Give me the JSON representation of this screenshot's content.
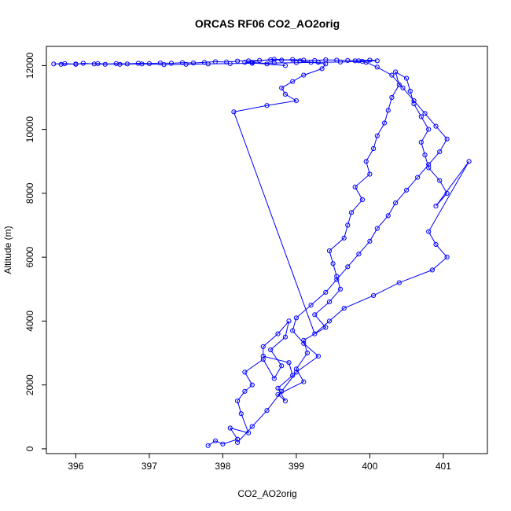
{
  "chart_data": {
    "type": "line",
    "title": "ORCAS RF06 CO2_AO2orig",
    "xlabel": "CO2_AO2orig",
    "ylabel": "Altitude (m)",
    "xlim": [
      395.6,
      401.6
    ],
    "ylim": [
      -150,
      12600
    ],
    "x_ticks": [
      396,
      397,
      398,
      399,
      400,
      401
    ],
    "y_ticks": [
      0,
      2000,
      4000,
      6000,
      8000,
      10000,
      12000
    ],
    "grid": false,
    "legend": "none",
    "line_color": "#0000ff",
    "marker": "open-circle",
    "series": [
      {
        "x": [
          397.8,
          397.9,
          398.0,
          398.2,
          398.1,
          398.35,
          398.25,
          398.2,
          398.3,
          398.4,
          398.3,
          398.55,
          398.7,
          398.8,
          398.65,
          398.85,
          398.9,
          398.75,
          398.55,
          398.55,
          398.9,
          398.95,
          398.75,
          398.85,
          398.75,
          399.1,
          399.0,
          399.15,
          399.1,
          399.4,
          399.25,
          399.45,
          399.6,
          399.55,
          399.5,
          399.45,
          399.65,
          399.7,
          399.75,
          399.9,
          399.8,
          400.0,
          399.95,
          400.05,
          400.1,
          400.2,
          400.25,
          400.3,
          400.4,
          400.35,
          400.5,
          400.55,
          400.6,
          400.7,
          400.8,
          400.7,
          400.75,
          400.8,
          400.95,
          401.05,
          400.9,
          401.35,
          400.8,
          400.9,
          401.05,
          400.85,
          400.4,
          400.05,
          399.65,
          399.45,
          399.25,
          398.15,
          398.6,
          399.0,
          398.85,
          398.8,
          398.95,
          399.1,
          399.35,
          399.4,
          399.2,
          399.05,
          398.7,
          398.3,
          398.85,
          398.6,
          398.4
        ],
        "y": [
          100,
          250,
          150,
          300,
          650,
          500,
          1100,
          1500,
          1800,
          2000,
          2400,
          2800,
          2200,
          2600,
          3100,
          3500,
          4000,
          3600,
          3200,
          2900,
          2700,
          2300,
          1900,
          1500,
          1700,
          2100,
          2500,
          3000,
          3400,
          3800,
          4200,
          4600,
          5000,
          5400,
          5800,
          6200,
          6600,
          7000,
          7400,
          7800,
          8200,
          8600,
          9000,
          9400,
          9800,
          10200,
          10600,
          11000,
          11400,
          11800,
          11600,
          11200,
          10800,
          10400,
          10000,
          9600,
          9200,
          8800,
          8400,
          8000,
          7600,
          9000,
          6800,
          6400,
          6000,
          5600,
          5200,
          4800,
          4400,
          4000,
          3600,
          10550,
          10750,
          10900,
          11100,
          11300,
          11500,
          11700,
          11900,
          12050,
          12100,
          12150,
          12200,
          12100,
          12000,
          12050,
          12100
        ]
      },
      {
        "x": [
          398.2,
          398.4,
          398.6,
          398.8,
          399.0,
          399.3,
          399.1,
          398.95,
          399.0,
          399.2,
          399.4,
          399.55,
          399.7,
          399.85,
          400.0,
          400.1,
          400.25,
          400.35,
          400.5,
          400.65,
          400.8,
          400.95,
          401.05,
          400.9,
          400.75,
          400.6,
          400.45,
          400.3,
          400.1,
          399.95,
          399.8
        ],
        "y": [
          200,
          700,
          1200,
          1800,
          2400,
          2900,
          3300,
          3700,
          4100,
          4500,
          4900,
          5300,
          5700,
          6100,
          6500,
          6900,
          7300,
          7700,
          8100,
          8500,
          8900,
          9300,
          9700,
          10100,
          10500,
          10900,
          11300,
          11700,
          11950,
          12100,
          12150
        ]
      }
    ],
    "cloud_series": {
      "x": [
        395.7,
        395.85,
        396.0,
        396.1,
        396.25,
        396.4,
        396.55,
        396.7,
        396.85,
        397.0,
        397.15,
        397.3,
        397.45,
        397.6,
        397.75,
        397.9,
        398.05,
        398.2,
        398.35,
        398.5,
        398.65,
        398.8,
        398.95,
        399.1,
        399.25,
        399.4,
        399.55,
        399.7,
        399.85,
        400.0,
        400.1,
        399.9,
        399.6,
        399.3,
        399.0,
        398.7,
        398.4,
        398.1,
        397.8,
        397.5,
        397.2,
        396.9,
        396.6,
        396.3,
        396.0,
        395.8
      ],
      "y": [
        12050,
        12060,
        12040,
        12070,
        12050,
        12040,
        12060,
        12050,
        12070,
        12060,
        12080,
        12070,
        12090,
        12080,
        12100,
        12120,
        12110,
        12140,
        12150,
        12160,
        12180,
        12170,
        12190,
        12170,
        12160,
        12180,
        12170,
        12160,
        12150,
        12170,
        12150,
        12130,
        12110,
        12100,
        12090,
        12080,
        12070,
        12060,
        12050,
        12040,
        12030,
        12050,
        12040,
        12060,
        12050,
        12040
      ]
    }
  }
}
